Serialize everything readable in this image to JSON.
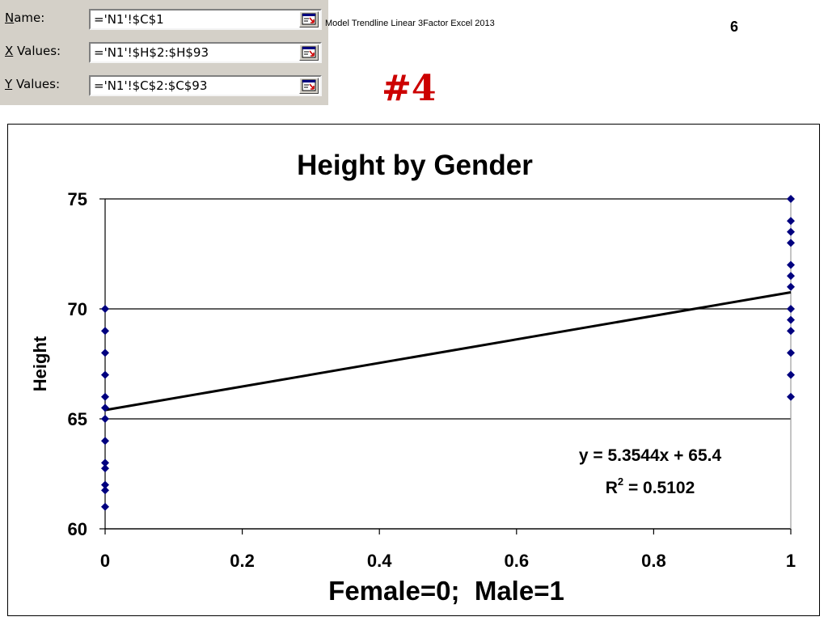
{
  "dialog": {
    "rows": [
      {
        "label_prefix": "",
        "label_underlined": "N",
        "label_rest": "ame:",
        "value": "='N1'!$C$1"
      },
      {
        "label_prefix": "",
        "label_underlined": "X",
        "label_rest": " Values:",
        "value": "='N1'!$H$2:$H$93"
      },
      {
        "label_prefix": "",
        "label_underlined": "Y",
        "label_rest": " Values:",
        "value": "='N1'!$C$2:$C$93"
      }
    ]
  },
  "header": {
    "subtitle": "Model Trendline Linear 3Factor Excel 2013",
    "page_number": "6",
    "slide_tag": "#4"
  },
  "colors": {
    "marker": "#00007f",
    "trendline": "#000000",
    "slide_tag": "#cc0000"
  },
  "chart_data": {
    "type": "scatter",
    "title": "Height by Gender",
    "xlabel": "Female=0;  Male=1",
    "ylabel": "Height",
    "xlim": [
      0,
      1
    ],
    "ylim": [
      60,
      75
    ],
    "x_ticks": [
      "0",
      "0.2",
      "0.4",
      "0.6",
      "0.8",
      "1"
    ],
    "y_ticks": [
      "60",
      "65",
      "70",
      "75"
    ],
    "gridlines": "horizontal major",
    "marker": "diamond",
    "series": [
      {
        "points": [
          [
            0,
            61
          ],
          [
            0,
            61.75
          ],
          [
            0,
            62
          ],
          [
            0,
            62.75
          ],
          [
            0,
            63
          ],
          [
            0,
            64
          ],
          [
            0,
            65
          ],
          [
            0,
            65.5
          ],
          [
            0,
            66
          ],
          [
            0,
            67
          ],
          [
            0,
            68
          ],
          [
            0,
            69
          ],
          [
            0,
            70
          ],
          [
            1,
            66
          ],
          [
            1,
            67
          ],
          [
            1,
            68
          ],
          [
            1,
            69
          ],
          [
            1,
            69.5
          ],
          [
            1,
            70
          ],
          [
            1,
            71
          ],
          [
            1,
            71.5
          ],
          [
            1,
            72
          ],
          [
            1,
            73
          ],
          [
            1,
            73.5
          ],
          [
            1,
            74
          ],
          [
            1,
            75
          ]
        ]
      }
    ],
    "trendline": {
      "type": "linear",
      "slope": 5.3544,
      "intercept": 65.4,
      "equation": "y = 5.3544x + 65.4",
      "r2_label": "R",
      "r2_sup": "2",
      "r2_value": " = 0.5102"
    }
  }
}
